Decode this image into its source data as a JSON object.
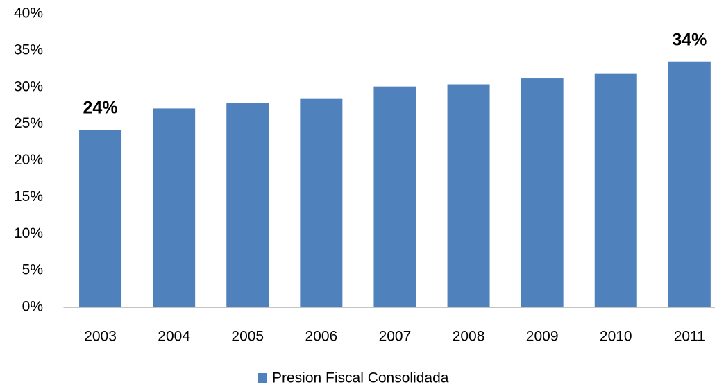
{
  "chart_data": {
    "type": "bar",
    "categories": [
      "2003",
      "2004",
      "2005",
      "2006",
      "2007",
      "2008",
      "2009",
      "2010",
      "2011"
    ],
    "series": [
      {
        "name": "Presion Fiscal Consolidada",
        "color": "#4f81bd",
        "values": [
          24.2,
          27.1,
          27.8,
          28.4,
          30.1,
          30.4,
          31.2,
          31.9,
          33.5
        ],
        "value_labels": [
          "24%",
          null,
          null,
          null,
          null,
          null,
          null,
          null,
          "34%"
        ]
      }
    ],
    "ylim": [
      0,
      40
    ],
    "yticks": [
      {
        "value": 0,
        "label": "0%"
      },
      {
        "value": 5,
        "label": "5%"
      },
      {
        "value": 10,
        "label": "10%"
      },
      {
        "value": 15,
        "label": "15%"
      },
      {
        "value": 20,
        "label": "20%"
      },
      {
        "value": 25,
        "label": "25%"
      },
      {
        "value": 30,
        "label": "30%"
      },
      {
        "value": 35,
        "label": "35%"
      },
      {
        "value": 40,
        "label": "40%"
      }
    ],
    "grid": false,
    "legend": "bottom"
  }
}
